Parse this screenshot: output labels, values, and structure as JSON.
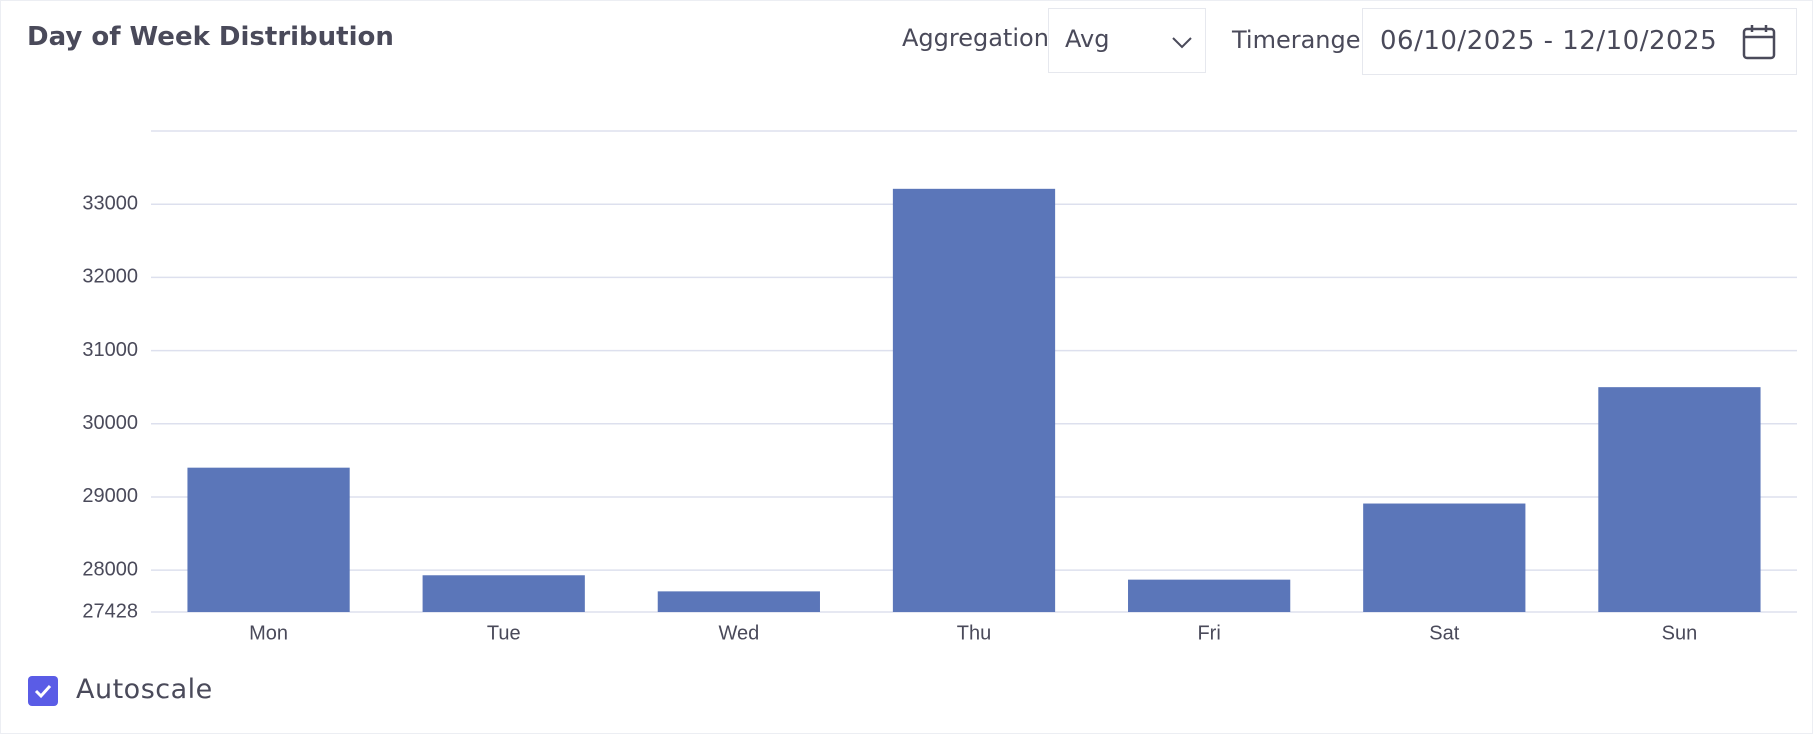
{
  "header": {
    "title": "Day of Week Distribution",
    "aggregation_label": "Aggregation",
    "aggregation_value": "Avg",
    "timerange_label": "Timerange",
    "timerange_value": "06/10/2025 - 12/10/2025"
  },
  "chart_data": {
    "type": "bar",
    "categories": [
      "Mon",
      "Tue",
      "Wed",
      "Thu",
      "Fri",
      "Sat",
      "Sun"
    ],
    "values": [
      29400,
      27930,
      27710,
      33210,
      27870,
      28910,
      30500
    ],
    "color": "#5b76b9",
    "ylim": [
      27428,
      34000
    ],
    "yticks": [
      27428,
      28000,
      29000,
      30000,
      31000,
      32000,
      33000
    ],
    "grid": true
  },
  "footer": {
    "autoscale_label": "Autoscale",
    "autoscale_checked": true
  }
}
